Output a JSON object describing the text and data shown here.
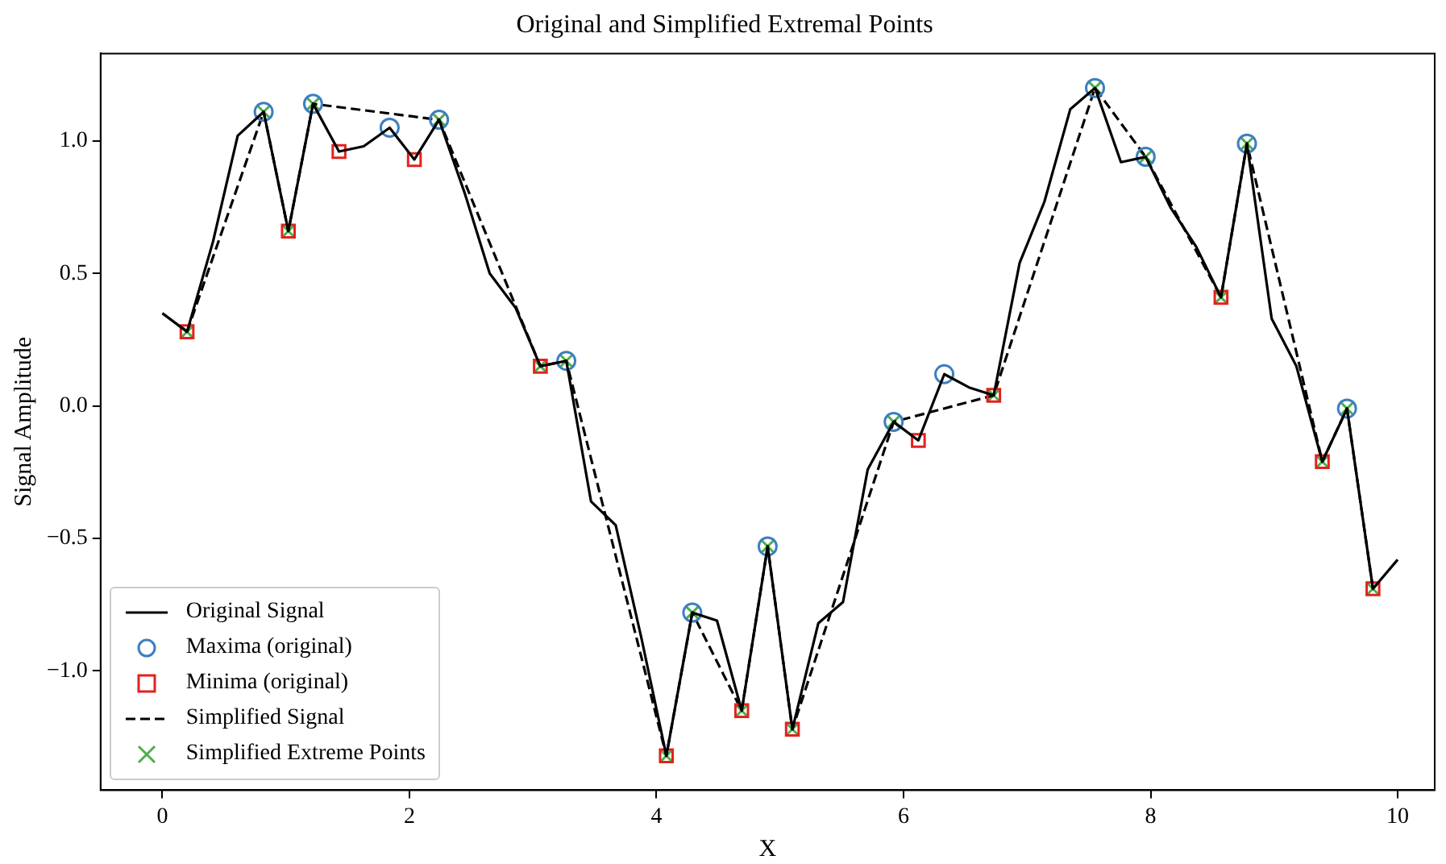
{
  "chart_data": {
    "type": "line",
    "title": "Original and Simplified Extremal Points",
    "xlabel": "X",
    "ylabel": "Signal Amplitude",
    "xlim": [
      -0.5,
      10.3
    ],
    "ylim": [
      -1.45,
      1.33
    ],
    "xticks": [
      0,
      2,
      4,
      6,
      8,
      10
    ],
    "yticks": [
      {
        "value": -1,
        "label": "−1.0"
      },
      {
        "value": -0.5,
        "label": "−0.5"
      },
      {
        "value": 0,
        "label": "0.0"
      },
      {
        "value": 0.5,
        "label": "0.5"
      },
      {
        "value": 1,
        "label": "1.0"
      }
    ],
    "grid": false,
    "legend": "bottom left",
    "series": [
      {
        "type": "line",
        "name": "Original Signal",
        "color": "#000000",
        "line_style": "solid",
        "marker": "none",
        "x": [
          0,
          0.2,
          0.41,
          0.61,
          0.82,
          1.02,
          1.22,
          1.43,
          1.63,
          1.84,
          2.04,
          2.24,
          2.45,
          2.65,
          2.86,
          3.06,
          3.27,
          3.47,
          3.67,
          3.88,
          4.08,
          4.29,
          4.49,
          4.69,
          4.9,
          5.1,
          5.31,
          5.51,
          5.71,
          5.92,
          6.12,
          6.33,
          6.53,
          6.73,
          6.94,
          7.14,
          7.35,
          7.55,
          7.76,
          7.96,
          8.16,
          8.37,
          8.57,
          8.78,
          8.98,
          9.18,
          9.39,
          9.59,
          9.8,
          10
        ],
        "values": [
          0.35,
          0.28,
          0.62,
          1.02,
          1.11,
          0.66,
          1.14,
          0.96,
          0.98,
          1.05,
          0.93,
          1.08,
          0.8,
          0.5,
          0.37,
          0.15,
          0.17,
          -0.36,
          -0.45,
          -0.88,
          -1.32,
          -0.78,
          -0.81,
          -1.15,
          -0.53,
          -1.22,
          -0.82,
          -0.74,
          -0.24,
          -0.06,
          -0.13,
          0.12,
          0.07,
          0.04,
          0.54,
          0.77,
          1.12,
          1.2,
          0.92,
          0.94,
          0.75,
          0.6,
          0.41,
          0.99,
          0.33,
          0.15,
          -0.21,
          -0.01,
          -0.69,
          -0.58
        ]
      },
      {
        "type": "scatter",
        "name": "Maxima (original)",
        "color": "#3d7fc1",
        "marker": "circle",
        "x": [
          0.82,
          1.22,
          1.84,
          2.24,
          3.27,
          4.29,
          4.9,
          5.92,
          6.33,
          7.55,
          7.96,
          8.78,
          9.59
        ],
        "values": [
          1.11,
          1.14,
          1.05,
          1.08,
          0.17,
          -0.78,
          -0.53,
          -0.06,
          0.12,
          1.2,
          0.94,
          0.99,
          -0.01
        ]
      },
      {
        "type": "scatter",
        "name": "Minima (original)",
        "color": "#e3211c",
        "marker": "square",
        "x": [
          0.2,
          1.02,
          1.43,
          2.04,
          3.06,
          4.08,
          4.69,
          5.1,
          6.12,
          6.73,
          8.57,
          9.39,
          9.8
        ],
        "values": [
          0.28,
          0.66,
          0.96,
          0.93,
          0.15,
          -1.32,
          -1.15,
          -1.22,
          -0.13,
          0.04,
          0.41,
          -0.21,
          -0.69
        ]
      },
      {
        "type": "line",
        "name": "Simplified Signal",
        "color": "#000000",
        "line_style": "dashed",
        "marker": "none",
        "x": [
          0.2,
          0.82,
          1.02,
          1.22,
          2.24,
          3.06,
          3.27,
          4.08,
          4.29,
          4.69,
          4.9,
          5.1,
          5.92,
          6.73,
          7.55,
          7.96,
          8.57,
          8.78,
          9.39,
          9.59,
          9.8
        ],
        "values": [
          0.28,
          1.11,
          0.66,
          1.14,
          1.08,
          0.15,
          0.17,
          -1.32,
          -0.78,
          -1.15,
          -0.53,
          -1.22,
          -0.06,
          0.04,
          1.2,
          0.94,
          0.41,
          0.99,
          -0.21,
          -0.01,
          -0.69
        ]
      },
      {
        "type": "scatter",
        "name": "Simplified Extreme Points",
        "color": "#4daf4a",
        "marker": "cross",
        "x": [
          0.2,
          0.82,
          1.02,
          1.22,
          2.24,
          3.06,
          3.27,
          4.08,
          4.29,
          4.69,
          4.9,
          5.1,
          5.92,
          6.73,
          7.55,
          7.96,
          8.57,
          8.78,
          9.39,
          9.59,
          9.8
        ],
        "values": [
          0.28,
          1.11,
          0.66,
          1.14,
          1.08,
          0.15,
          0.17,
          -1.32,
          -0.78,
          -1.15,
          -0.53,
          -1.22,
          -0.06,
          0.04,
          1.2,
          0.94,
          0.41,
          0.99,
          -0.21,
          -0.01,
          -0.69
        ]
      }
    ]
  }
}
